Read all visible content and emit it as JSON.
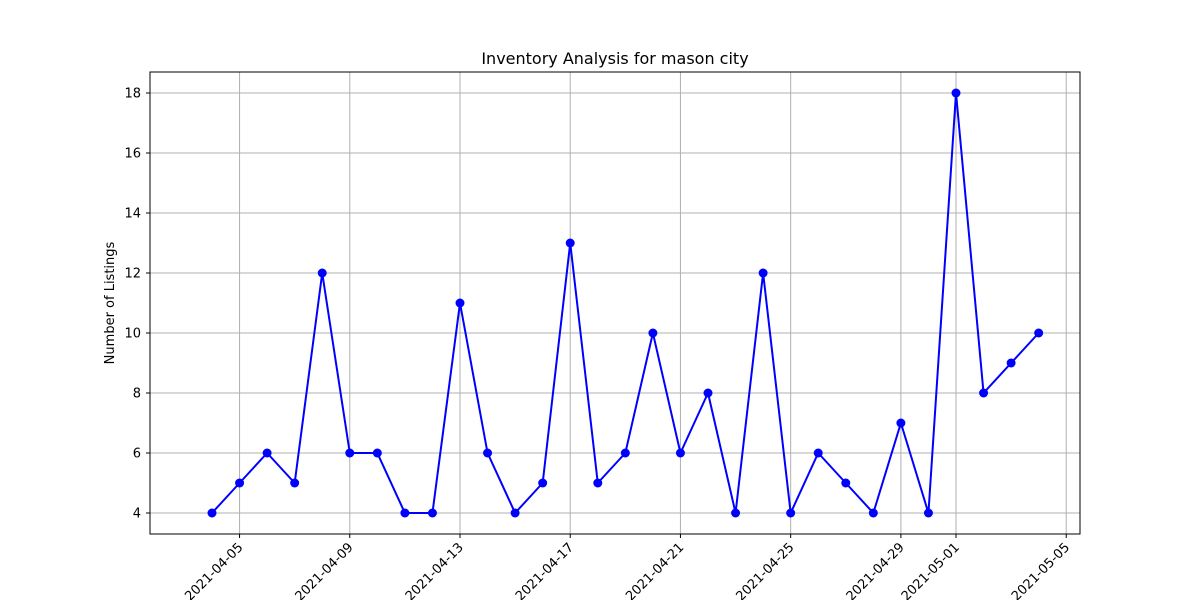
{
  "chart_data": {
    "type": "line",
    "title": "Inventory Analysis for mason city",
    "xlabel": "",
    "ylabel": "Number of Listings",
    "x": [
      "2021-04-04",
      "2021-04-05",
      "2021-04-06",
      "2021-04-07",
      "2021-04-08",
      "2021-04-09",
      "2021-04-10",
      "2021-04-11",
      "2021-04-12",
      "2021-04-13",
      "2021-04-14",
      "2021-04-15",
      "2021-04-16",
      "2021-04-17",
      "2021-04-18",
      "2021-04-19",
      "2021-04-20",
      "2021-04-21",
      "2021-04-22",
      "2021-04-23",
      "2021-04-24",
      "2021-04-25",
      "2021-04-26",
      "2021-04-27",
      "2021-04-28",
      "2021-04-29",
      "2021-04-30",
      "2021-05-01",
      "2021-05-02",
      "2021-05-03",
      "2021-05-04"
    ],
    "series": [
      {
        "color": "#0000ff",
        "marker": "circle",
        "values": [
          4,
          5,
          6,
          5,
          12,
          6,
          6,
          4,
          4,
          11,
          6,
          4,
          5,
          13,
          5,
          6,
          10,
          6,
          8,
          4,
          12,
          4,
          6,
          5,
          4,
          7,
          4,
          18,
          8,
          9,
          10
        ]
      }
    ],
    "xticks": [
      "2021-04-05",
      "2021-04-09",
      "2021-04-13",
      "2021-04-17",
      "2021-04-21",
      "2021-04-25",
      "2021-04-29",
      "2021-05-01",
      "2021-05-05"
    ],
    "yticks": [
      4,
      6,
      8,
      10,
      12,
      14,
      16,
      18
    ],
    "xlim": [
      "2021-04-01 18:00",
      "2021-05-05 12:00"
    ],
    "ylim": [
      3.3,
      18.7
    ],
    "grid": true,
    "legend": "none"
  }
}
